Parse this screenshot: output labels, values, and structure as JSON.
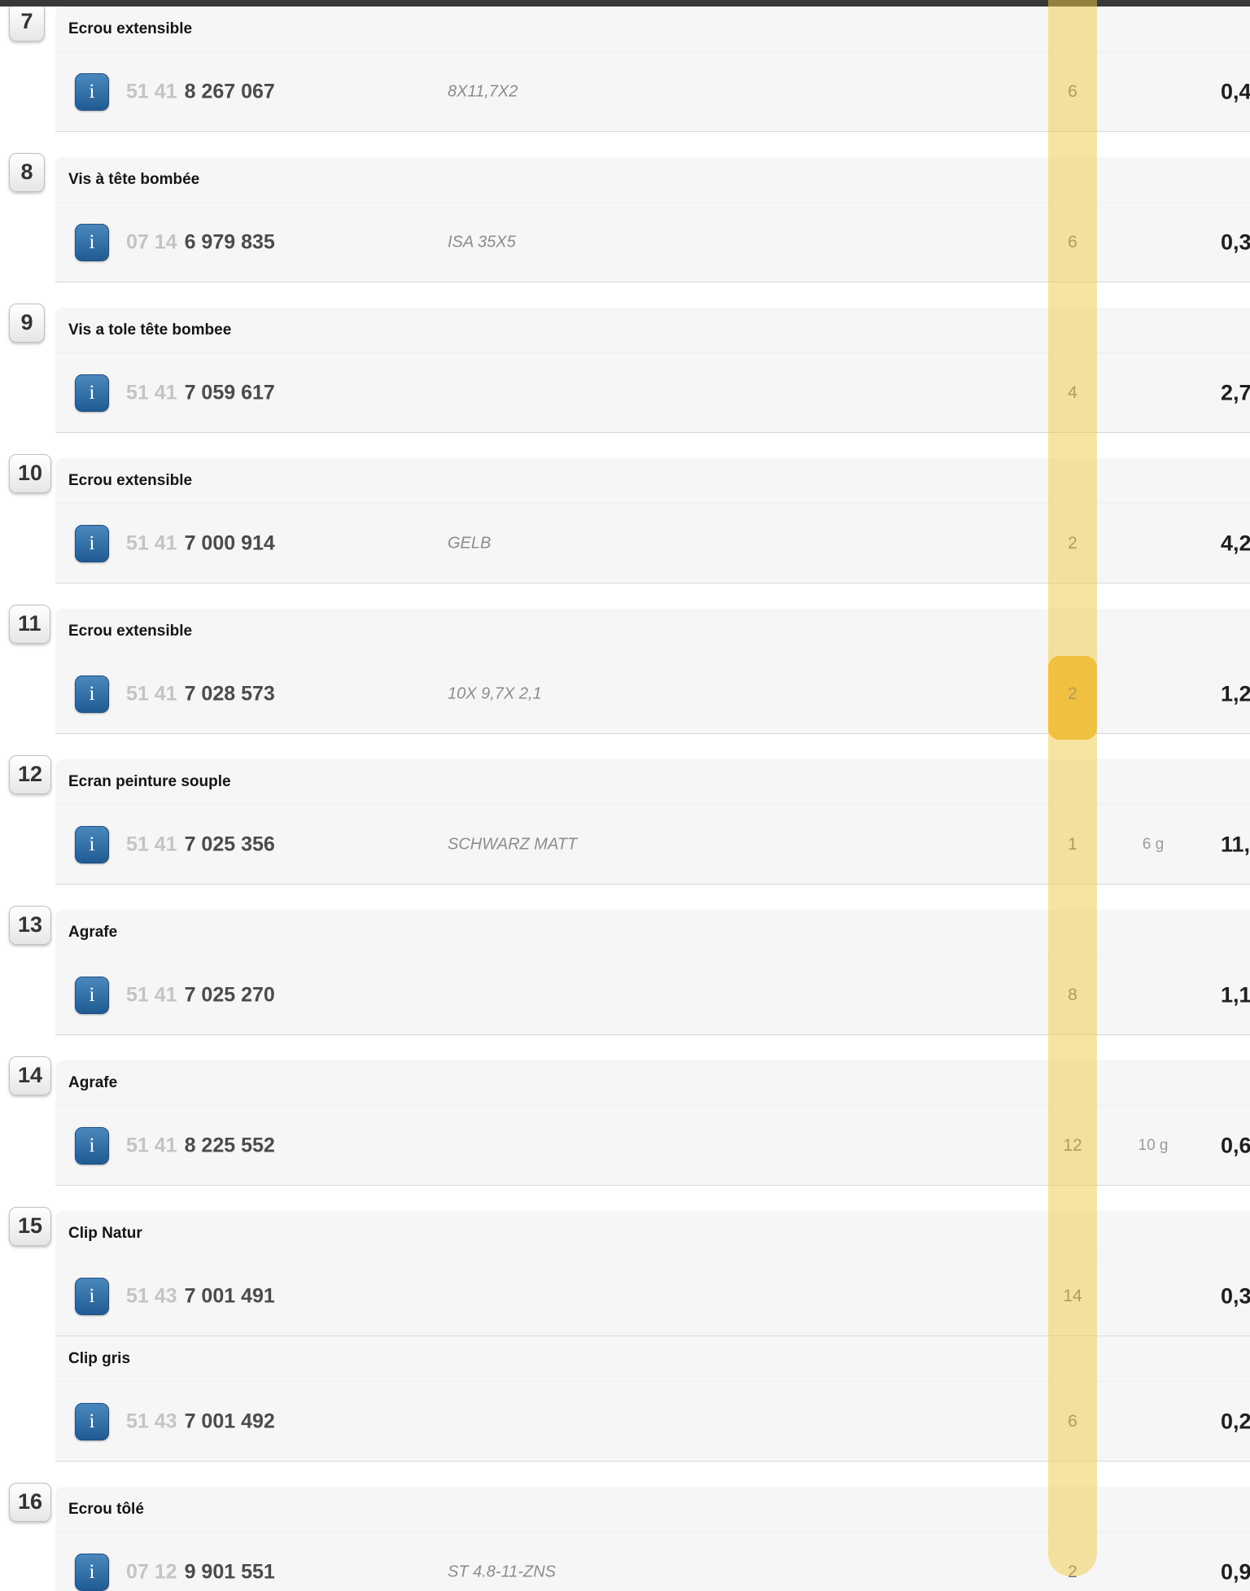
{
  "topbar": {
    "color": "#383838"
  },
  "highlight": {
    "column_stripe_color": "rgba(242,201,70,0.5)",
    "selected_cell_color": "#efb83a",
    "selected_row_badge": "11",
    "selected_row_qty": "2"
  },
  "info_button": {
    "label": "i",
    "color": "#2a6096"
  },
  "groups": [
    {
      "badge": "7",
      "items": [
        {
          "name": "Ecrou extensible",
          "pn_prefix": "51 41",
          "pn_main": "8 267 067",
          "spec": "8X11,7X2",
          "qty": "6",
          "weight": "",
          "price": "0,4",
          "highlighted": false
        }
      ]
    },
    {
      "badge": "8",
      "items": [
        {
          "name": "Vis à tête bombée",
          "pn_prefix": "07 14",
          "pn_main": "6 979 835",
          "spec": "ISA 35X5",
          "qty": "6",
          "weight": "",
          "price": "0,3",
          "highlighted": false
        }
      ]
    },
    {
      "badge": "9",
      "items": [
        {
          "name": "Vis a tole tête bombee",
          "pn_prefix": "51 41",
          "pn_main": "7 059 617",
          "spec": "",
          "qty": "4",
          "weight": "",
          "price": "2,7",
          "highlighted": false
        }
      ]
    },
    {
      "badge": "10",
      "items": [
        {
          "name": "Ecrou extensible",
          "pn_prefix": "51 41",
          "pn_main": "7 000 914",
          "spec": "GELB",
          "qty": "2",
          "weight": "",
          "price": "4,2",
          "highlighted": false
        }
      ]
    },
    {
      "badge": "11",
      "items": [
        {
          "name": "Ecrou extensible",
          "pn_prefix": "51 41",
          "pn_main": "7 028 573",
          "spec": "10X 9,7X 2,1",
          "qty": "2",
          "weight": "",
          "price": "1,2",
          "highlighted": true
        }
      ]
    },
    {
      "badge": "12",
      "items": [
        {
          "name": "Ecran peinture souple",
          "pn_prefix": "51 41",
          "pn_main": "7 025 356",
          "spec": "SCHWARZ MATT",
          "qty": "1",
          "weight": "6 g",
          "price": "11,",
          "highlighted": false
        }
      ]
    },
    {
      "badge": "13",
      "items": [
        {
          "name": "Agrafe",
          "pn_prefix": "51 41",
          "pn_main": "7 025 270",
          "spec": "",
          "qty": "8",
          "weight": "",
          "price": "1,1",
          "highlighted": false
        }
      ]
    },
    {
      "badge": "14",
      "items": [
        {
          "name": "Agrafe",
          "pn_prefix": "51 41",
          "pn_main": "8 225 552",
          "spec": "",
          "qty": "12",
          "weight": "10 g",
          "price": "0,6",
          "highlighted": false
        }
      ]
    },
    {
      "badge": "15",
      "items": [
        {
          "name": "Clip Natur",
          "pn_prefix": "51 43",
          "pn_main": "7 001 491",
          "spec": "",
          "qty": "14",
          "weight": "",
          "price": "0,3",
          "highlighted": false
        },
        {
          "name": "Clip gris",
          "pn_prefix": "51 43",
          "pn_main": "7 001 492",
          "spec": "",
          "qty": "6",
          "weight": "",
          "price": "0,2",
          "highlighted": false
        }
      ]
    },
    {
      "badge": "16",
      "items": [
        {
          "name": "Ecrou tôlé",
          "pn_prefix": "07 12",
          "pn_main": "9 901 551",
          "spec": "ST 4.8-11-ZNS",
          "qty": "2",
          "weight": "",
          "price": "0,9",
          "highlighted": false
        }
      ]
    }
  ]
}
